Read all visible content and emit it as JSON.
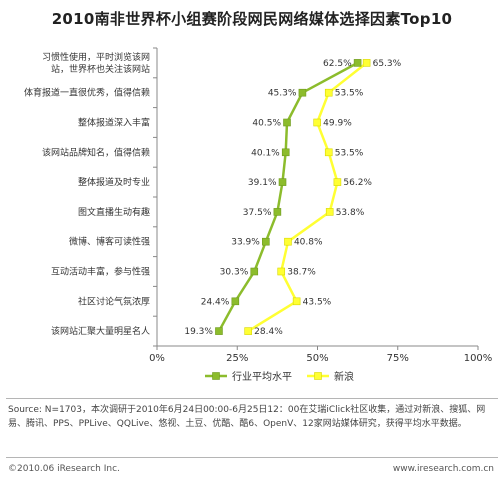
{
  "title": "2010南非世界杯小组赛阶段网民网络媒体选择因素Top10",
  "chart_data": {
    "type": "line",
    "orientation": "horizontal",
    "categories": [
      [
        "习惯性使用，平时浏览该网",
        "站，世界杯也关注该网站"
      ],
      [
        "体育报道一直很优秀，值得信赖"
      ],
      [
        "整体报道深入丰富"
      ],
      [
        "该网站品牌知名，值得信赖"
      ],
      [
        "整体报道及时专业"
      ],
      [
        "图文直播生动有趣"
      ],
      [
        "微博、博客可读性强"
      ],
      [
        "互动活动丰富，参与性强"
      ],
      [
        "社区讨论气氛浓厚"
      ],
      [
        "该网站汇聚大量明星名人"
      ]
    ],
    "series": [
      {
        "name": "行业平均水平",
        "color": "#8cbc2c",
        "values": [
          62.5,
          45.3,
          40.5,
          40.1,
          39.1,
          37.5,
          33.9,
          30.3,
          24.4,
          19.3
        ],
        "labels": [
          "62.5%",
          "45.3%",
          "40.5%",
          "40.1%",
          "39.1%",
          "37.5%",
          "33.9%",
          "30.3%",
          "24.4%",
          "19.3%"
        ]
      },
      {
        "name": "新浪",
        "color": "#ffff33",
        "values": [
          65.3,
          53.5,
          49.9,
          53.5,
          56.2,
          53.8,
          40.8,
          38.7,
          43.5,
          28.4
        ],
        "labels": [
          "65.3%",
          "53.5%",
          "49.9%",
          "53.5%",
          "56.2%",
          "53.8%",
          "40.8%",
          "38.7%",
          "43.5%",
          "28.4%"
        ]
      }
    ],
    "xlim": [
      0,
      100
    ],
    "xticks": [
      0,
      25,
      50,
      75,
      100
    ],
    "xtick_labels": [
      "0%",
      "25%",
      "50%",
      "75%",
      "100%"
    ],
    "grid": false,
    "legend": "bottom-center"
  },
  "footer": {
    "source": "Source: N=1703，本次调研于2010年6月24日00:00-6月25日12：00在艾瑞iClick社区收集，通过对新浪、搜狐、网易、腾讯、PPS、PPLive、QQLive、悠视、土豆、优酷、酷6、OpenV、12家网站媒体研究，获得平均水平数据。",
    "copyright": "©2010.06 iResearch Inc.",
    "website": "www.iresearch.com.cn"
  }
}
